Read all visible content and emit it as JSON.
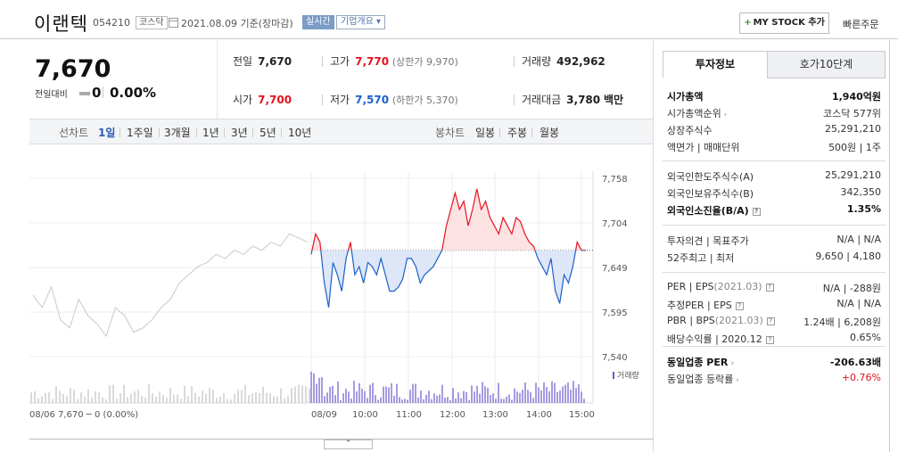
{
  "header": {
    "name": "이랜텍",
    "code": "054210",
    "market": "코스닥",
    "date": "2021.08.09 기준(장마감)",
    "realtime": "실시간",
    "company_info": "기업개요",
    "mystock": "MY STOCK 추가",
    "quick_order": "빠른주문"
  },
  "price": {
    "current": "7,670",
    "prev_label": "전일대비",
    "change": "0",
    "change_pct": "0.00%"
  },
  "quotes": {
    "prev_close_label": "전일",
    "prev_close": "7,670",
    "high_label": "고가",
    "high": "7,770",
    "upper_limit": "(상한가 9,970)",
    "volume_label": "거래량",
    "volume": "492,962",
    "open_label": "시가",
    "open": "7,700",
    "low_label": "저가",
    "low": "7,570",
    "lower_limit": "(하한가 5,370)",
    "amount_label": "거래대금",
    "amount": "3,780",
    "amount_unit": "백만"
  },
  "toolbar": {
    "line_chart": "선차트",
    "periods": [
      "1일",
      "1주일",
      "3개월",
      "1년",
      "3년",
      "5년",
      "10년"
    ],
    "candle_chart": "봉차트",
    "candle_periods": [
      "일봉",
      "주봉",
      "월봉"
    ]
  },
  "chart": {
    "y_ticks": [
      "7,758",
      "7,704",
      "7,649",
      "7,595",
      "7,540"
    ],
    "x_ticks": [
      "08/09",
      "10:00",
      "11:00",
      "12:00",
      "13:00",
      "14:00",
      "15:00"
    ],
    "prev_day_label": "08/06  7,670 ─ 0 (0.00%)",
    "volume_label": "거래량",
    "up_color": "#e5121f",
    "down_color": "#1b5fcc",
    "volume_color": "#6a5acd"
  },
  "chart_data": {
    "type": "line",
    "prev_close": 7670,
    "ylim": [
      7540,
      7758
    ],
    "series": [
      {
        "values": [
          7665,
          7690,
          7680,
          7630,
          7600,
          7655,
          7640,
          7620,
          7660,
          7680,
          7640,
          7650,
          7630,
          7655,
          7650,
          7640,
          7660,
          7640,
          7620,
          7620,
          7625,
          7635,
          7660,
          7660,
          7650,
          7630,
          7640,
          7645,
          7650,
          7660,
          7670,
          7700,
          7720,
          7740,
          7720,
          7730,
          7700,
          7720,
          7745,
          7720,
          7730,
          7710,
          7700,
          7690,
          7710,
          7700,
          7690,
          7710,
          7705,
          7690,
          7680,
          7675,
          7660,
          7650,
          7640,
          7660,
          7620,
          7605,
          7640,
          7630,
          7650,
          7680,
          7670,
          7670
        ]
      }
    ]
  },
  "panel": {
    "tab_info": "투자정보",
    "tab_orderbook": "호가10단계",
    "rows_group1": [
      {
        "k": "시가총액",
        "v": "1,940억원",
        "kbold": true,
        "vbold": true
      },
      {
        "k": "시가총액순위",
        "v": "코스닥 577위",
        "arrow": true
      },
      {
        "k": "상장주식수",
        "v": "25,291,210"
      },
      {
        "k": "액면가 | 매매단위",
        "v": "500원 | 1주"
      }
    ],
    "rows_group2": [
      {
        "k": "외국인한도주식수(A)",
        "v": "25,291,210"
      },
      {
        "k": "외국인보유주식수(B)",
        "v": "342,350"
      },
      {
        "k": "외국인소진율(B/A)",
        "v": "1.35%",
        "kbold": true,
        "vbold": true,
        "help": true
      }
    ],
    "rows_group3": [
      {
        "k": "투자의견 | 목표주가",
        "v": "N/A | N/A"
      },
      {
        "k": "52주최고 | 최저",
        "v": "9,650 | 4,180"
      }
    ],
    "rows_group4": [
      {
        "k": "PER | EPS",
        "k_sub": "(2021.03)",
        "v": "N/A | -288원",
        "help": true
      },
      {
        "k": "추정PER | EPS",
        "v": "N/A | N/A",
        "help": true
      },
      {
        "k": "PBR | BPS",
        "k_sub": "(2021.03)",
        "v": "1.24배 | 6,208원",
        "help": true
      },
      {
        "k": "배당수익률 | 2020.12",
        "v": "0.65%",
        "help": true
      }
    ],
    "rows_group5": [
      {
        "k": "동일업종 PER",
        "v": "-206.63배",
        "kbold": true,
        "vbold": true,
        "arrow": true
      },
      {
        "k": "동일업종 등락률",
        "v": "+0.76%",
        "arrow": true,
        "vred": true
      }
    ]
  }
}
